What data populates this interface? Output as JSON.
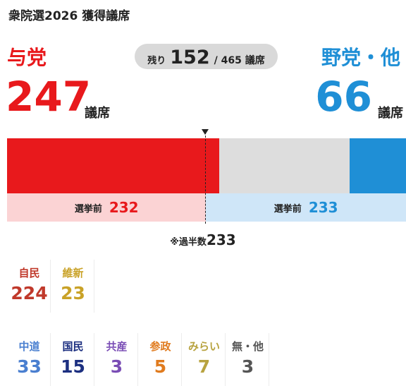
{
  "header": {
    "title": "衆院選2026 獲得議席"
  },
  "ruling": {
    "name": "与党",
    "seats": "247",
    "unit": "議席",
    "color": "#e8191c"
  },
  "opposition": {
    "name": "野党・他",
    "seats": "66",
    "unit": "議席",
    "color": "#1f8fd6"
  },
  "remaining": {
    "label": "残り",
    "value": "152",
    "total": "/ 465 議席"
  },
  "previous": {
    "label": "選挙前",
    "ruling_value": "232",
    "opposition_value": "233"
  },
  "majority": {
    "label": "※過半数",
    "value": "233"
  },
  "parties_row1": [
    {
      "name": "自民",
      "seats": "224",
      "color": "#c0392b"
    },
    {
      "name": "維新",
      "seats": "23",
      "color": "#c9a227"
    }
  ],
  "parties_row2": [
    {
      "name": "中道",
      "seats": "33",
      "color": "#4a7fd0"
    },
    {
      "name": "国民",
      "seats": "15",
      "color": "#1c2f80"
    },
    {
      "name": "共産",
      "seats": "3",
      "color": "#7a4db5"
    },
    {
      "name": "参政",
      "seats": "5",
      "color": "#e07b1e"
    },
    {
      "name": "みらい",
      "seats": "7",
      "color": "#b8a340"
    },
    {
      "name": "無・他",
      "seats": "3",
      "color": "#555555"
    }
  ],
  "chart_data": {
    "type": "bar",
    "orientation": "horizontal-stacked",
    "total": 465,
    "majority": 233,
    "series": [
      {
        "name": "与党",
        "value": 247,
        "color": "#e8191c"
      },
      {
        "name": "残り",
        "value": 152,
        "color": "#dddddd"
      },
      {
        "name": "野党・他",
        "value": 66,
        "color": "#1f8fd6"
      }
    ],
    "before_election": [
      {
        "name": "与党",
        "value": 232,
        "color": "#fbd3d4"
      },
      {
        "name": "野党・他",
        "value": 233,
        "color": "#cfe6f8"
      }
    ]
  }
}
